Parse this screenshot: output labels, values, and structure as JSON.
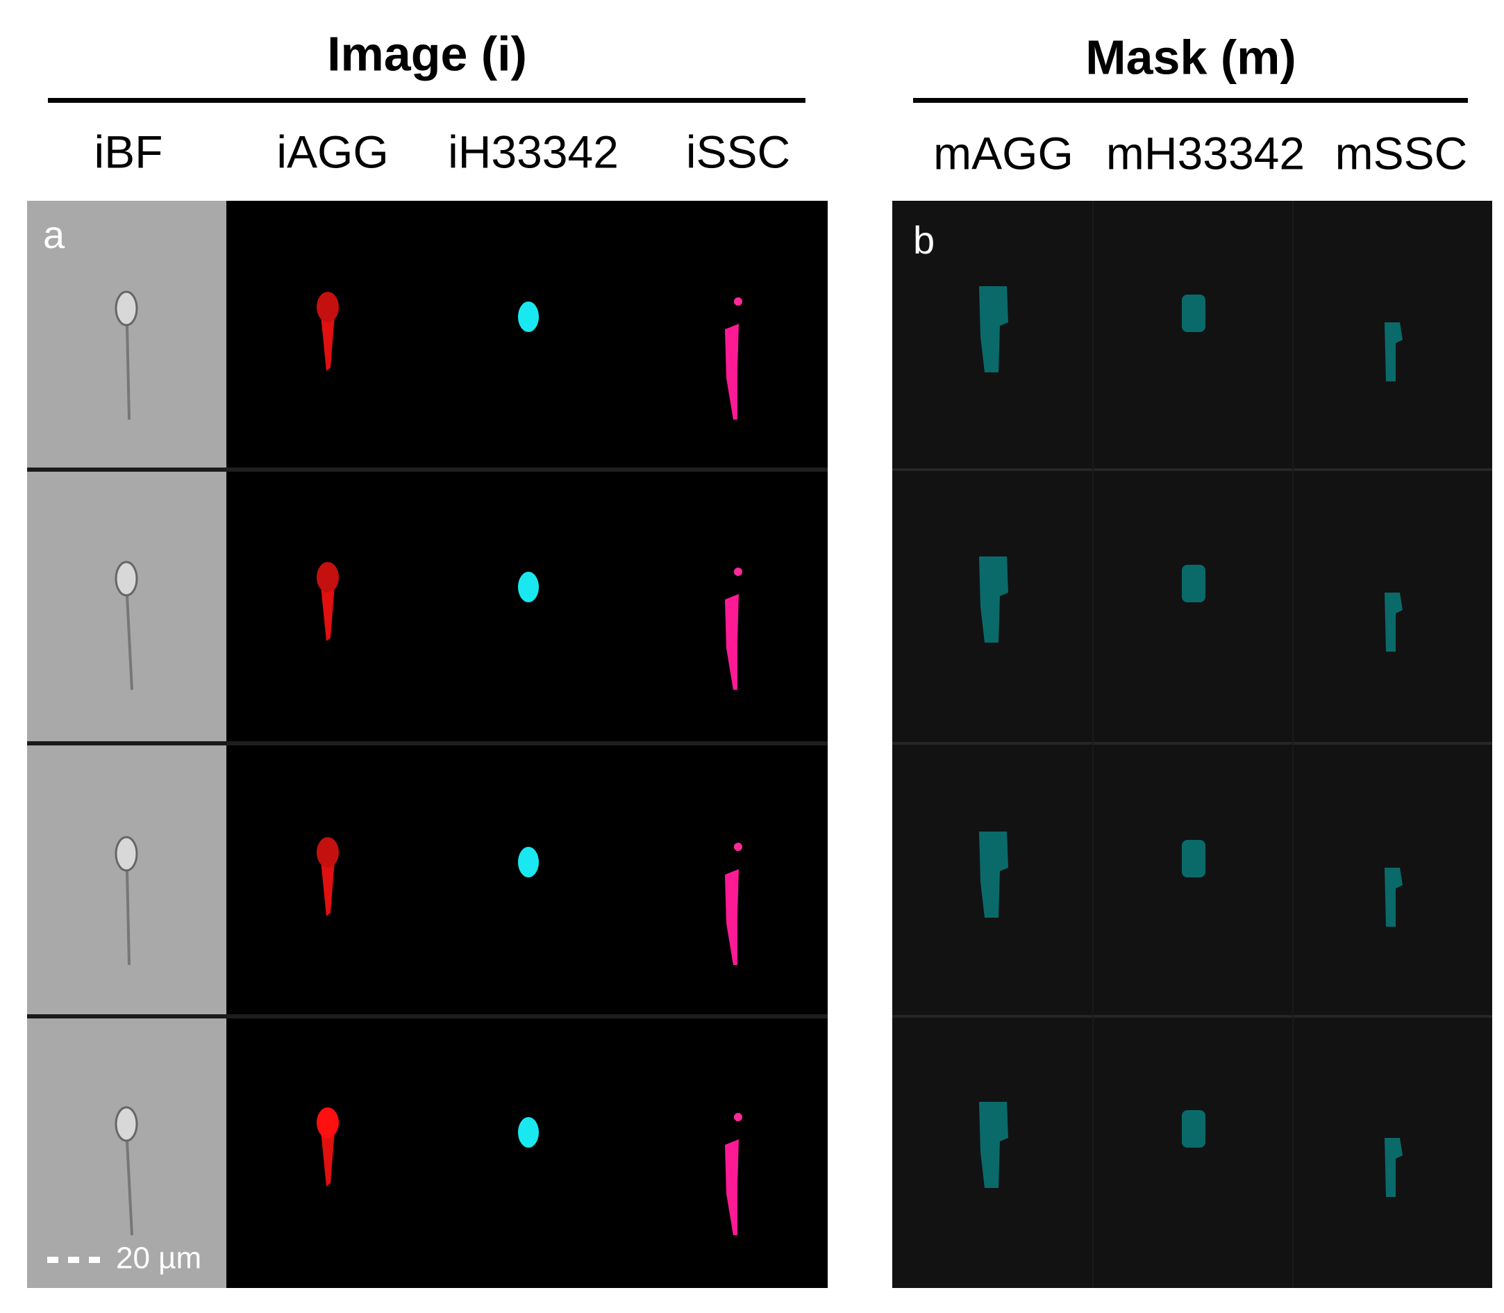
{
  "image_group": {
    "title": "Image (i)",
    "columns": [
      "iBF",
      "iAGG",
      "iH33342",
      "iSSC"
    ],
    "panel_label": "a",
    "scale_bar": "20 µm"
  },
  "mask_group": {
    "title": "Mask (m)",
    "columns": [
      "mAGG",
      "mH33342",
      "mSSC"
    ],
    "panel_label": "b"
  }
}
